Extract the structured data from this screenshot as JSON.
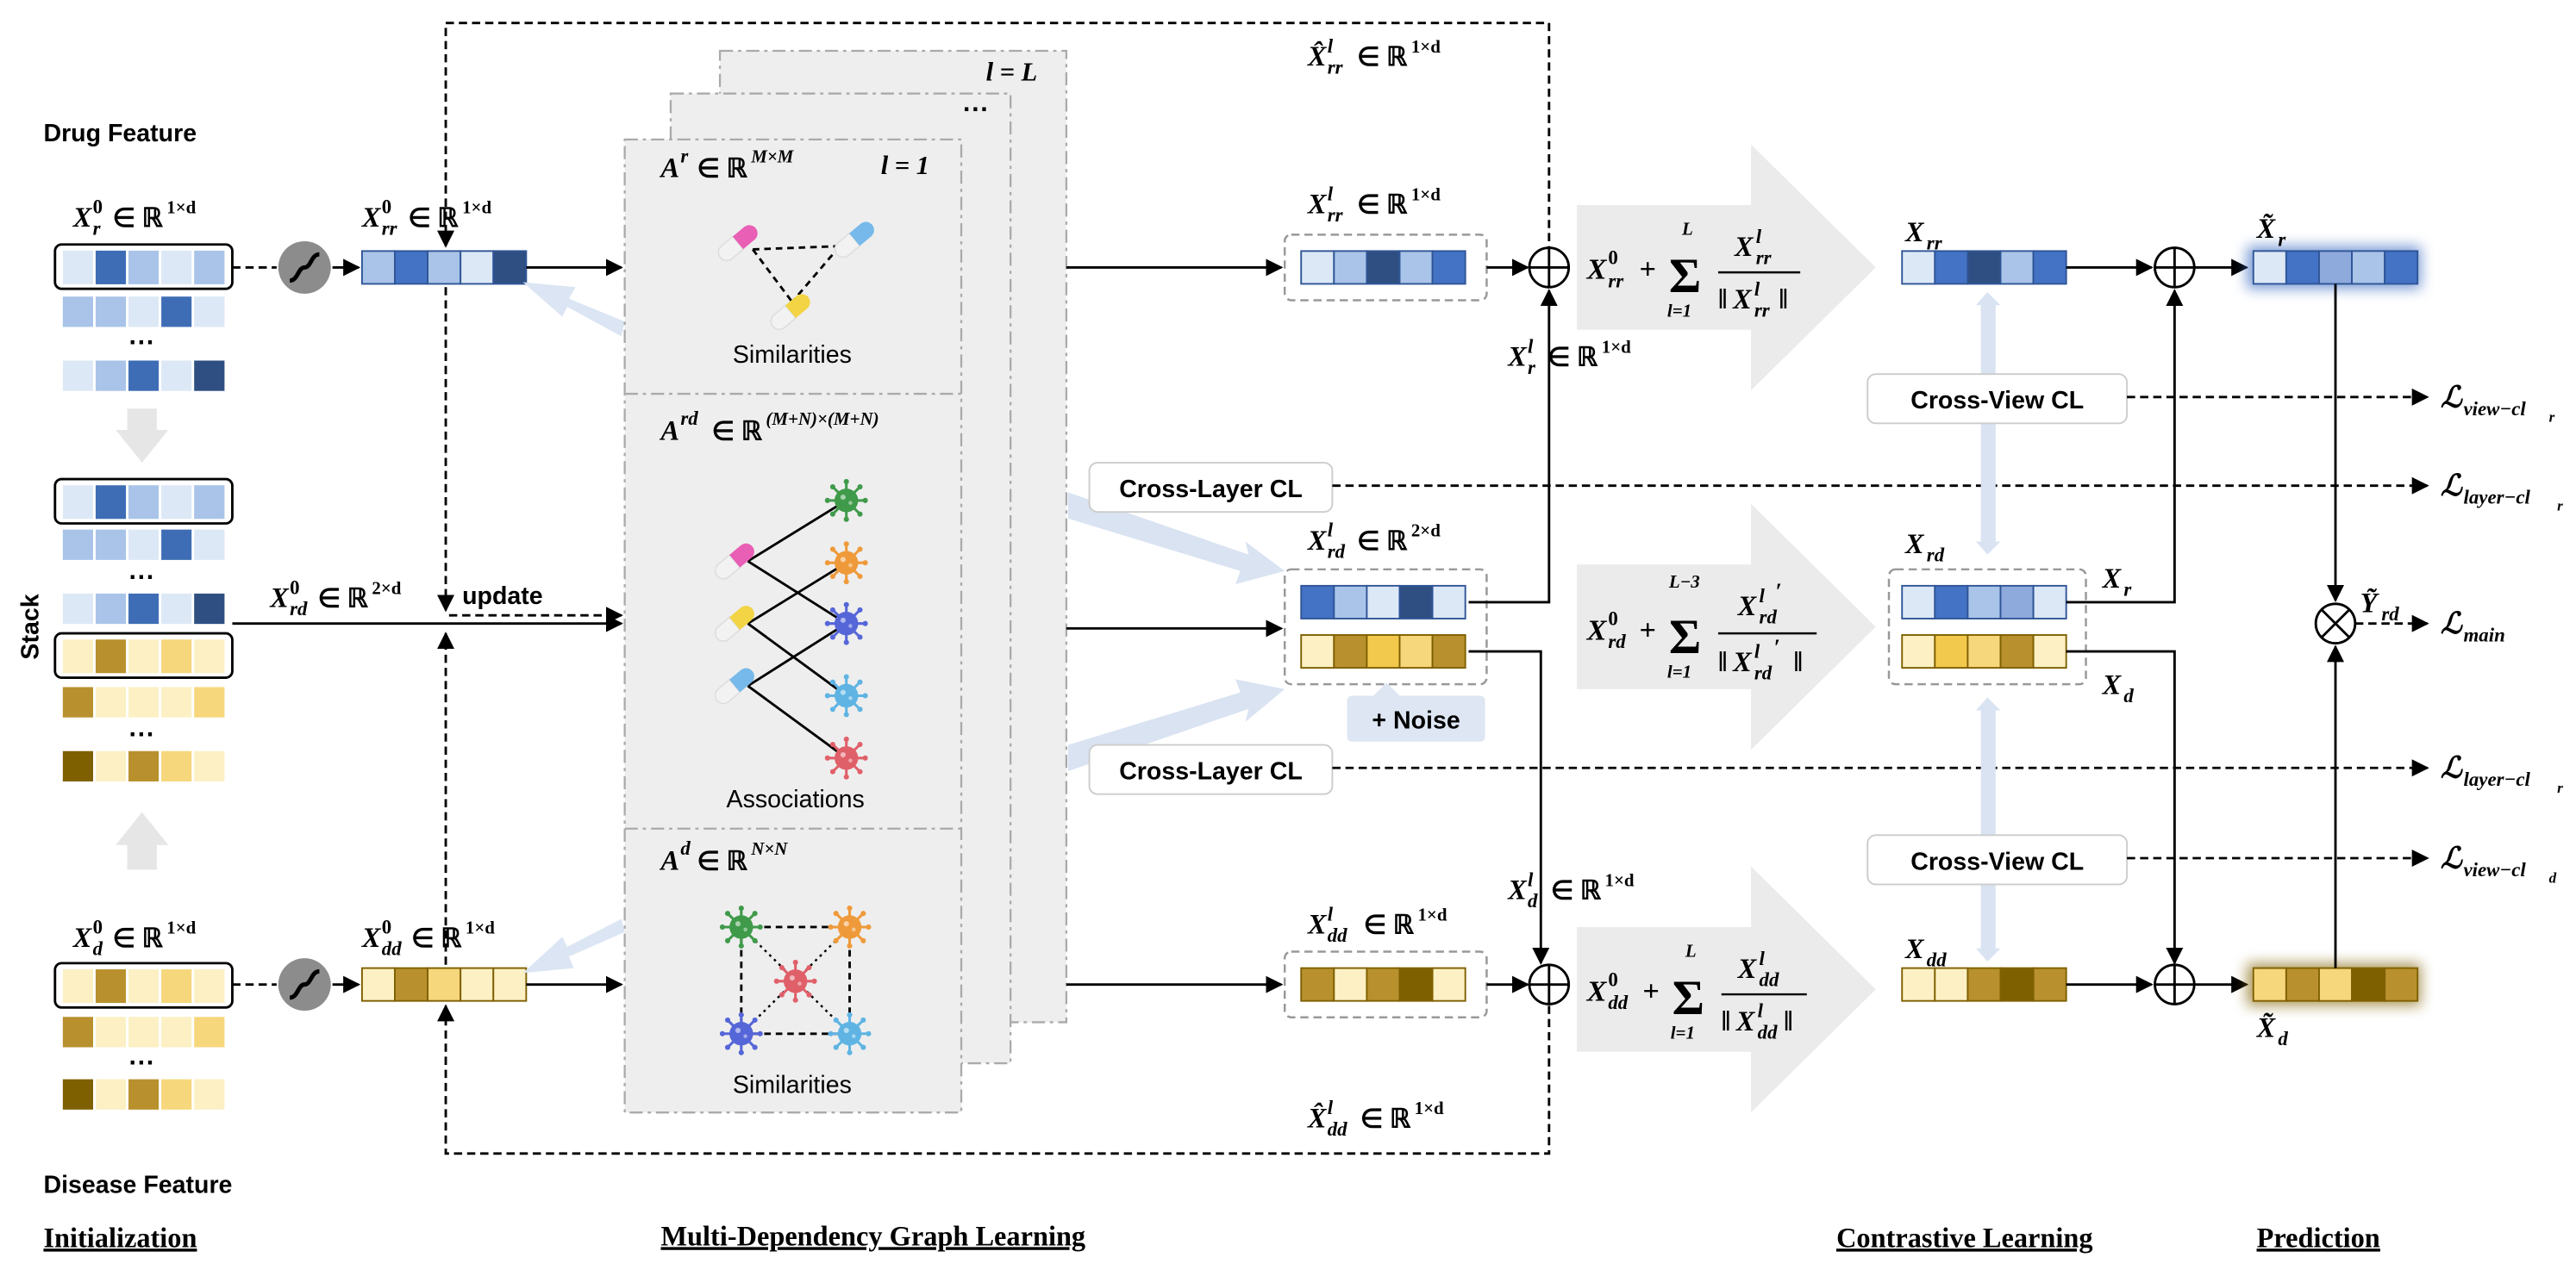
{
  "labels": {
    "drug_feature": "Drug Feature",
    "disease_feature": "Disease Feature",
    "stack": "Stack",
    "update": "update",
    "similarities": "Similarities",
    "associations": "Associations",
    "cross_layer_cl": "Cross-Layer CL",
    "cross_view_cl": "Cross-View CL",
    "noise": "+ Noise",
    "ellipsis": "···",
    "l_eq_L": "l = L",
    "l_eq_1": "l = 1"
  },
  "sections": {
    "initialization": "Initialization",
    "graph_learning": "Multi-Dependency Graph Learning",
    "contrastive": "Contrastive Learning",
    "prediction": "Prediction"
  },
  "math": {
    "xr0": "X_r^0 ∈ ℝ^{1×d}",
    "xd0": "X_d^0 ∈ ℝ^{1×d}",
    "xrr0": "X_rr^0 ∈ ℝ^{1×d}",
    "xdd0": "X_dd^0 ∈ ℝ^{1×d}",
    "xrd0": "X_rd^0 ∈ ℝ^{2×d}",
    "ar": "A^r ∈ ℝ^{M×M}",
    "ard": "A^rd ∈ ℝ^{(M+N)×(M+N)}",
    "ad": "A^d ∈ ℝ^{N×N}",
    "xhat_rr": "X̂_rr^l ∈ ℝ^{1×d}",
    "xhat_dd": "X̂_dd^l ∈ ℝ^{1×d}",
    "xrr_l": "X_rr^l ∈ ℝ^{1×d}",
    "xrd_l": "X_rd^l ∈ ℝ^{2×d}",
    "xdd_l": "X_dd^l ∈ ℝ^{1×d}",
    "xr_l": "X_r^l ∈ ℝ^{1×d}",
    "xd_l": "X_d^l ∈ ℝ^{1×d}",
    "sum_rr": "X_rr^0 + Σ_{l=1}^{L} X_rr^l / ‖X_rr^l‖",
    "sum_rd": "X_rd^0 + Σ_{l=1}^{L−3} X_rd^l′ / ‖X_rd^l′‖",
    "sum_dd": "X_dd^0 + Σ_{l=1}^{L} X_dd^l / ‖X_dd^l‖",
    "Xrr": "X_rr",
    "Xrd": "X_rd",
    "Xdd": "X_dd",
    "Xr": "X_r",
    "Xd": "X_d",
    "Xr_tilde": "X̃_r",
    "Xd_tilde": "X̃_d",
    "Yrd_tilde": "Ỹ_rd",
    "loss_view_r": "ℒ_{view−cl_r}",
    "loss_layer_r1": "ℒ_{layer−cl_r}",
    "loss_main": "ℒ_{main}",
    "loss_layer_r2": "ℒ_{layer−cl_r}",
    "loss_view_d": "ℒ_{view−cl_d}"
  },
  "colors": {
    "blue_dark": "#2f5597",
    "blue_mid": "#4472c4",
    "blue_light": "#a9c4e8",
    "blue_pale": "#dde8f6",
    "gold_dark": "#7f6000",
    "gold_mid": "#b8912e",
    "gold_light": "#f7d77c",
    "gold_pale": "#fcf0c4",
    "panel_bg": "#eeeeee",
    "arrow_pale": "#d9e3f2",
    "noise_bg": "#dde6f2",
    "pink": "#e85fb5",
    "yellow": "#f2d444",
    "sky": "#76b9ea",
    "green": "#3f9a4a",
    "orange": "#ef9a3a",
    "violet": "#5566d8",
    "cyan": "#5fb4e3",
    "red": "#e0606a"
  },
  "icons": [
    "sigmoid-icon",
    "pill-icon",
    "virus-icon",
    "circle-plus-icon",
    "circle-times-icon"
  ]
}
